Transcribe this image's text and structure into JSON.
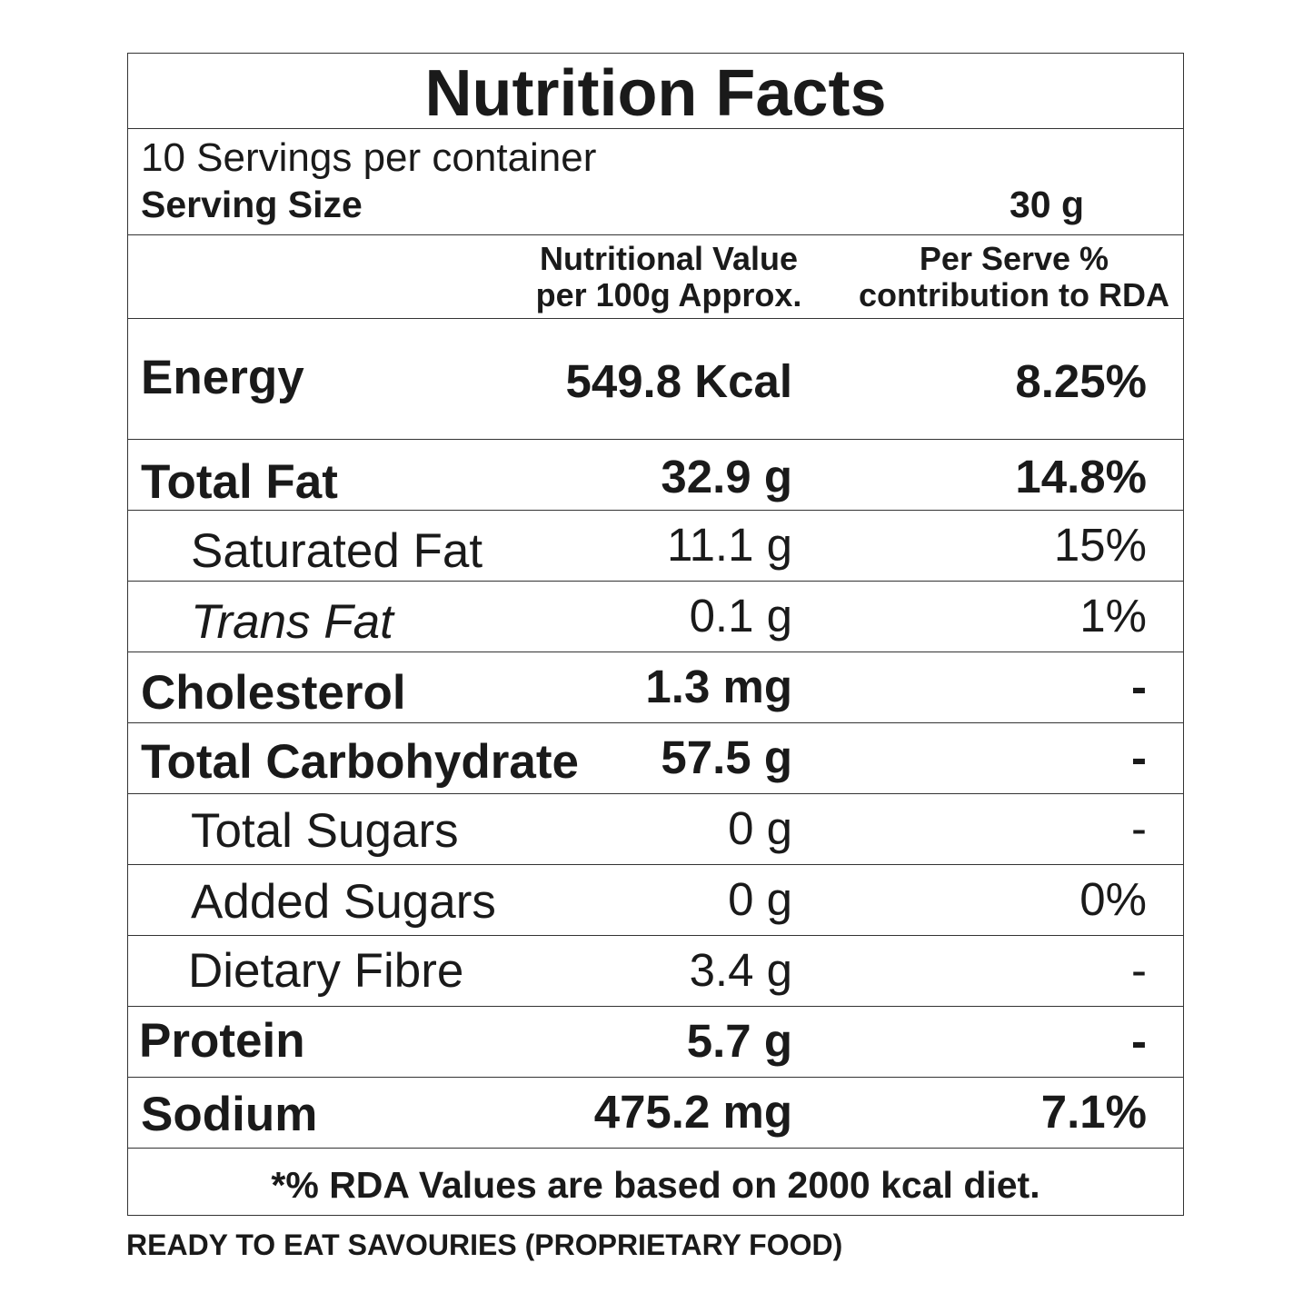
{
  "title": "Nutrition Facts",
  "servings_per_container": "10 Servings per container",
  "serving_size": {
    "label": "Serving Size",
    "value": "30 g"
  },
  "columns": {
    "value_header_line1": "Nutritional Value",
    "value_header_line2": "per 100g Approx.",
    "rda_header_line1": "Per Serve %",
    "rda_header_line2": "contribution to RDA"
  },
  "nutrients": [
    {
      "name": "Energy",
      "value": "549.8 Kcal",
      "rda": "8.25%"
    },
    {
      "name": "Total Fat",
      "value": "32.9 g",
      "rda": "14.8%"
    },
    {
      "name": "Saturated Fat",
      "value": "11.1 g",
      "rda": "15%"
    },
    {
      "name": "Trans Fat",
      "value": "0.1 g",
      "rda": "1%"
    },
    {
      "name": "Cholesterol",
      "value": "1.3 mg",
      "rda": "-"
    },
    {
      "name": "Total Carbohydrate",
      "value": "57.5 g",
      "rda": "-"
    },
    {
      "name": "Total Sugars",
      "value": "0 g",
      "rda": "-"
    },
    {
      "name": "Added Sugars",
      "value": "0 g",
      "rda": "0%"
    },
    {
      "name": "Dietary Fibre",
      "value": "3.4 g",
      "rda": "-"
    },
    {
      "name": "Protein",
      "value": "5.7 g",
      "rda": "-"
    },
    {
      "name": "Sodium",
      "value": "475.2 mg",
      "rda": "7.1%"
    }
  ],
  "footnote": "*% RDA Values are based on 2000 kcal diet.",
  "bottom_note": "READY TO EAT SAVOURIES (PROPRIETARY FOOD)"
}
